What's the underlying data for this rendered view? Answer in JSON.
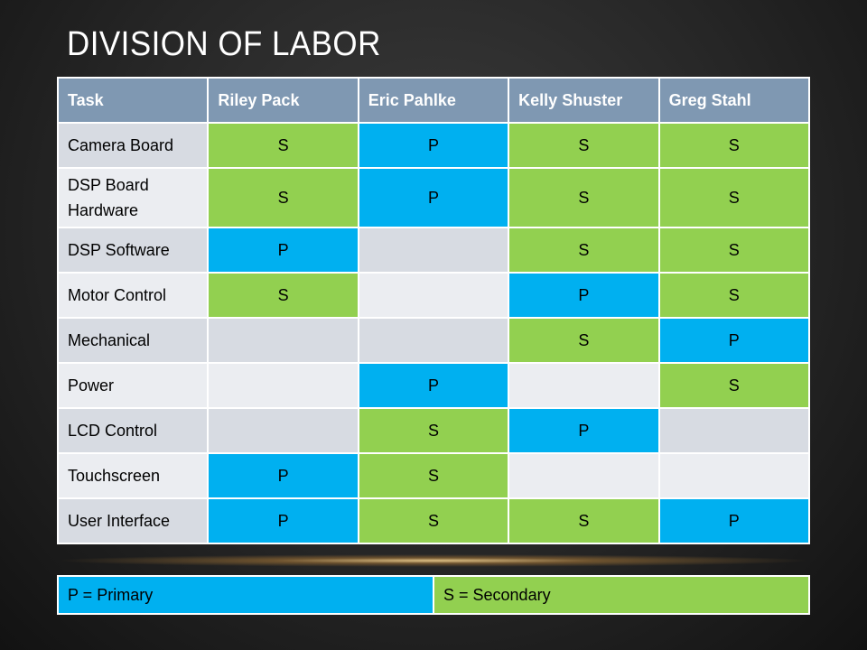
{
  "title": "DIVISION OF LABOR",
  "colors": {
    "primary": "#00b0f0",
    "secondary": "#92d050",
    "header": "#7f98b2"
  },
  "table": {
    "headers": [
      "Task",
      "Riley Pack",
      "Eric Pahlke",
      "Kelly Shuster",
      "Greg Stahl"
    ],
    "rows": [
      {
        "task": "Camera Board",
        "cells": [
          "S",
          "P",
          "S",
          "S"
        ]
      },
      {
        "task": "DSP Board Hardware",
        "cells": [
          "S",
          "P",
          "S",
          "S"
        ]
      },
      {
        "task": "DSP Software",
        "cells": [
          "P",
          "",
          "S",
          "S"
        ]
      },
      {
        "task": "Motor Control",
        "cells": [
          "S",
          "",
          "P",
          "S"
        ]
      },
      {
        "task": "Mechanical",
        "cells": [
          "",
          "",
          "S",
          "P"
        ]
      },
      {
        "task": "Power",
        "cells": [
          "",
          "P",
          "",
          "S"
        ]
      },
      {
        "task": "LCD Control",
        "cells": [
          "",
          "S",
          "P",
          ""
        ]
      },
      {
        "task": "Touchscreen",
        "cells": [
          "P",
          "S",
          "",
          ""
        ]
      },
      {
        "task": "User Interface",
        "cells": [
          "P",
          "S",
          "S",
          "P"
        ]
      }
    ]
  },
  "legend": {
    "primary": "P = Primary",
    "secondary": "S = Secondary"
  }
}
